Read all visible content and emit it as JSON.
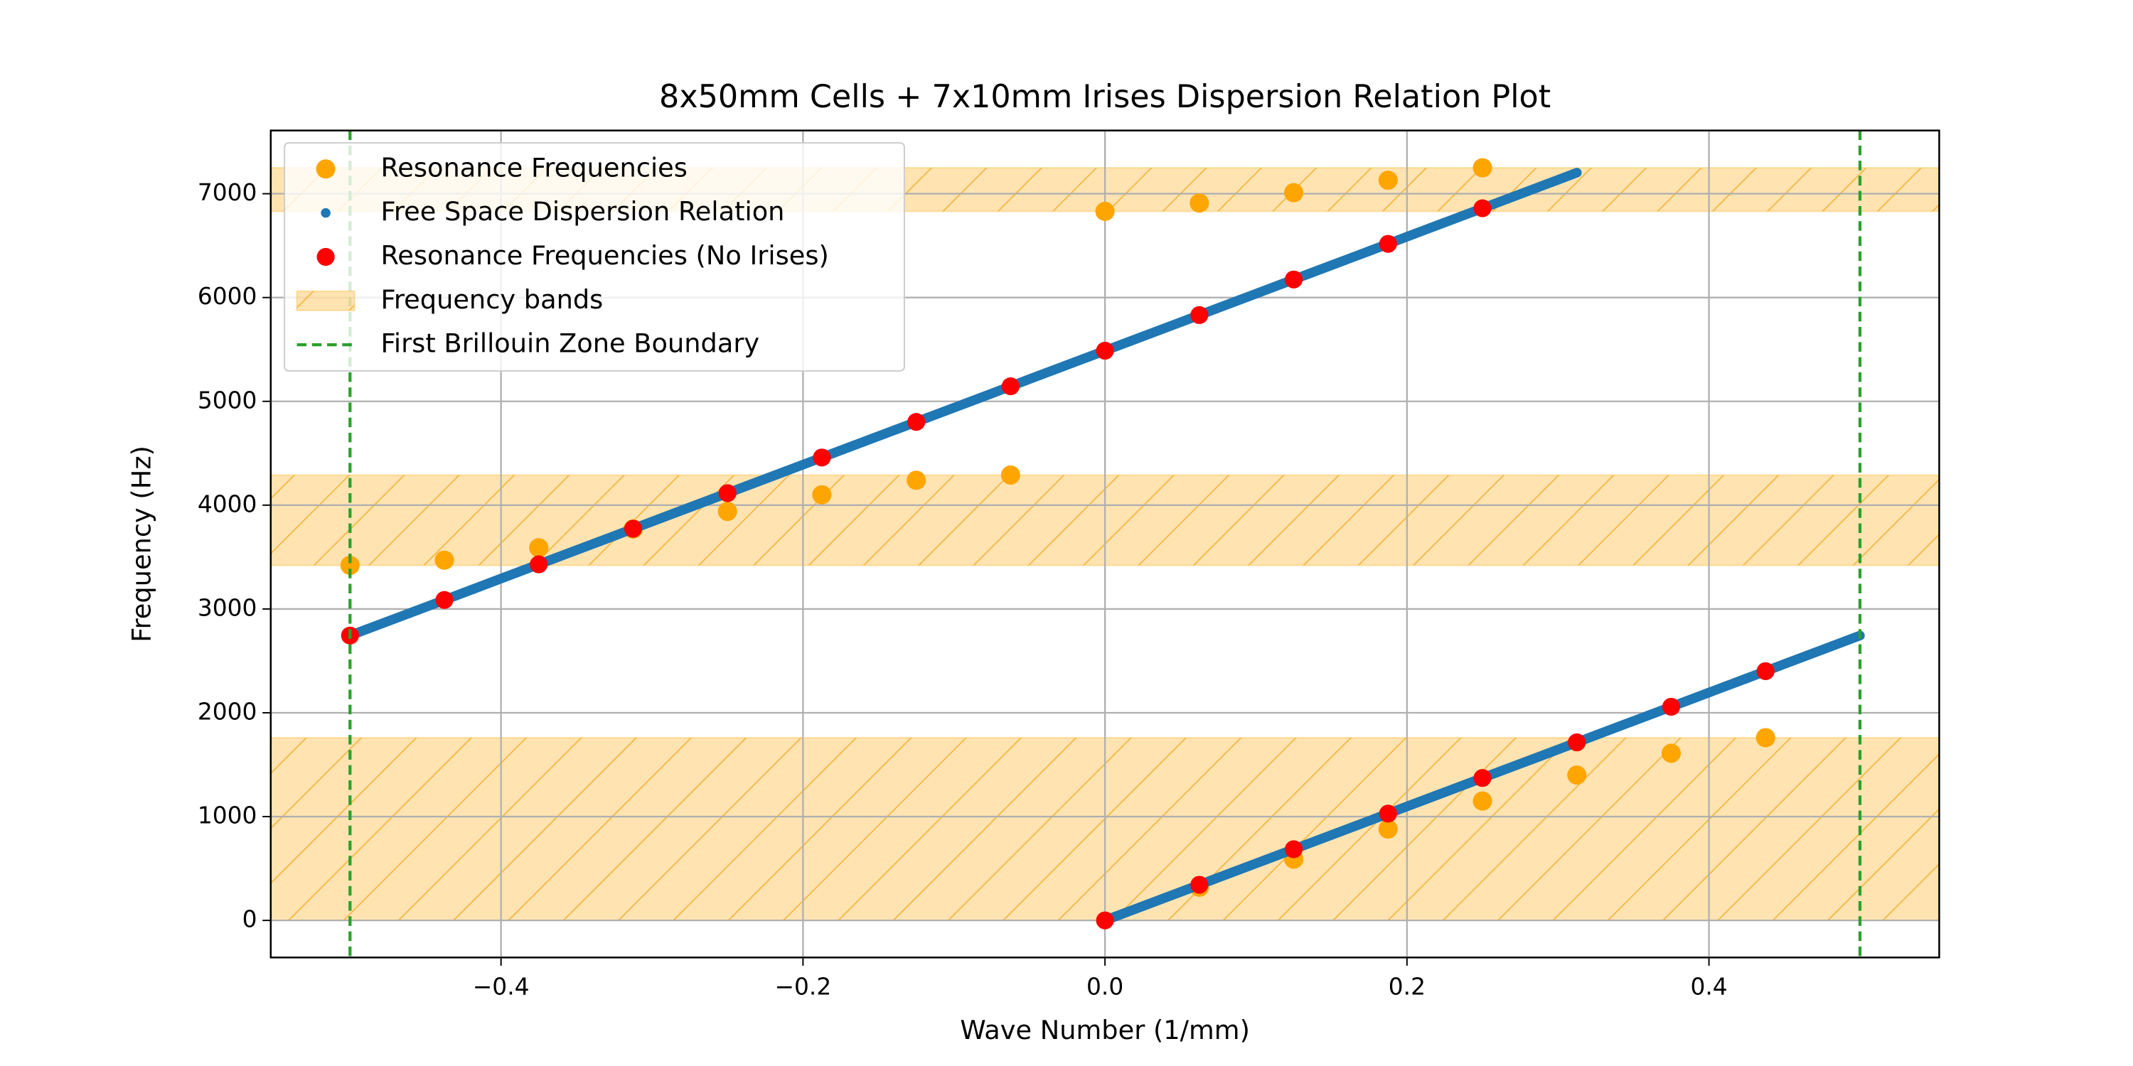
{
  "chart_data": {
    "type": "scatter",
    "title": "8x50mm Cells + 7x10mm Irises Dispersion Relation Plot",
    "xlabel": "Wave Number (1/mm)",
    "ylabel": "Frequency (Hz)",
    "xlim": [
      -0.5525,
      0.5525
    ],
    "ylim": [
      -357,
      7609
    ],
    "xticks": [
      {
        "value": -0.4,
        "label": "−0.4"
      },
      {
        "value": -0.2,
        "label": "−0.2"
      },
      {
        "value": 0,
        "label": "0.0"
      },
      0.2,
      0.4
    ],
    "yticks": [
      0,
      1000,
      2000,
      3000,
      4000,
      5000,
      6000,
      7000
    ],
    "grid": true,
    "legend": "upper left",
    "series": [
      {
        "name": "Resonance Frequencies",
        "color": "#ffa500",
        "x": [
          -0.5,
          -0.4375,
          -0.375,
          -0.3125,
          -0.25,
          -0.1875,
          -0.125,
          -0.0625,
          0,
          0.0625,
          0.125,
          0.1875,
          0.25,
          0.0625,
          0.125,
          0.1875,
          0.25,
          0.3125,
          0.375,
          0.4375
        ],
        "values": [
          3420,
          3470,
          3590,
          3770,
          3940,
          4100,
          4240,
          4290,
          6830,
          6910,
          7010,
          7130,
          7250,
          320,
          590,
          880,
          1150,
          1400,
          1610,
          1760
        ]
      },
      {
        "name": "Free Space Dispersion Relation",
        "color": "#1f77b4",
        "x": [
          0,
          0.025,
          0.05,
          0.075,
          0.1,
          0.125,
          0.15,
          0.175,
          0.2,
          0.225,
          0.25,
          0.275,
          0.3,
          0.325,
          0.35,
          0.375,
          0.4,
          0.425,
          0.45,
          0.475,
          0.5,
          null,
          -0.5,
          -0.475,
          -0.45,
          -0.425,
          -0.4,
          -0.375,
          -0.35,
          -0.325,
          -0.3,
          -0.275,
          -0.25,
          -0.225,
          -0.2,
          -0.175,
          -0.15,
          -0.125,
          -0.1,
          -0.075,
          -0.05,
          -0.025,
          0,
          0.025,
          0.05,
          0.075,
          0.1,
          0.125,
          0.15,
          0.175,
          0.2,
          0.225,
          0.25,
          0.275,
          0.3,
          0.3125
        ],
        "values": [
          0,
          137,
          274,
          412,
          549,
          686,
          823,
          960,
          1098,
          1235,
          1372,
          1509,
          1646,
          1784,
          1921,
          2058,
          2195,
          2332,
          2470,
          2607,
          2744,
          null,
          2744,
          2881,
          3018,
          3155,
          3293,
          3430,
          3567,
          3704,
          3842,
          3979,
          4116,
          4253,
          4390,
          4528,
          4665,
          4802,
          4939,
          5076,
          5214,
          5351,
          5488,
          5625,
          5762,
          5900,
          6037,
          6174,
          6311,
          6448,
          6586,
          6723,
          6860,
          6997,
          7134,
          7203
        ]
      },
      {
        "name": "Resonance Frequencies (No Irises)",
        "color": "#ff0000",
        "x": [
          0,
          0.0625,
          0.125,
          0.1875,
          0.25,
          0.3125,
          0.375,
          0.4375,
          -0.5,
          -0.4375,
          -0.375,
          -0.3125,
          -0.25,
          -0.1875,
          -0.125,
          -0.0625,
          0,
          0.0625,
          0.125,
          0.1875,
          0.25
        ],
        "values": [
          0,
          343,
          686,
          1029,
          1372,
          1715,
          2058,
          2401,
          2744,
          3087,
          3430,
          3773,
          4116,
          4459,
          4802,
          5145,
          5488,
          5831,
          6174,
          6517,
          6860
        ]
      }
    ],
    "bands": {
      "name": "Frequency bands",
      "color": "#ffa500",
      "ranges": [
        [
          0,
          1760
        ],
        [
          3420,
          4290
        ],
        [
          6830,
          7250
        ]
      ]
    },
    "boundaries": {
      "name": "First Brillouin Zone Boundary",
      "color": "#2ca02c",
      "x": [
        -0.5,
        0.5
      ]
    }
  }
}
